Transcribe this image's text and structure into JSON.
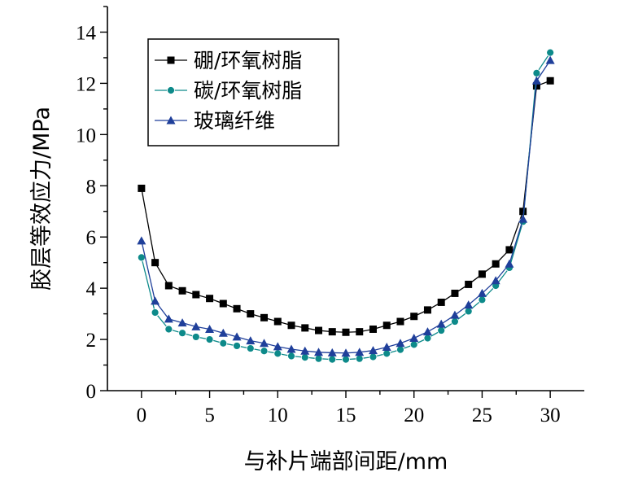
{
  "chart_data": {
    "type": "line",
    "xlabel": "与补片端部间距/mm",
    "ylabel": "胶层等效应力/MPa",
    "xlim": [
      -2.5,
      32.5
    ],
    "ylim": [
      0,
      15
    ],
    "xticks": [
      0,
      5,
      10,
      15,
      20,
      25,
      30
    ],
    "yticks": [
      0,
      2,
      4,
      6,
      8,
      10,
      12,
      14
    ],
    "legend_position": "top-left",
    "series": [
      {
        "name": "硼/环氧树脂",
        "marker": "square",
        "color": "#000000",
        "x": [
          0,
          1,
          2,
          3,
          4,
          5,
          6,
          7,
          8,
          9,
          10,
          11,
          12,
          13,
          14,
          15,
          16,
          17,
          18,
          19,
          20,
          21,
          22,
          23,
          24,
          25,
          26,
          27,
          28,
          29,
          30
        ],
        "values": [
          7.9,
          5.0,
          4.1,
          3.9,
          3.75,
          3.6,
          3.4,
          3.2,
          3.0,
          2.85,
          2.7,
          2.55,
          2.45,
          2.35,
          2.3,
          2.28,
          2.3,
          2.4,
          2.55,
          2.7,
          2.9,
          3.15,
          3.45,
          3.8,
          4.15,
          4.55,
          4.95,
          5.5,
          7.0,
          11.9,
          12.1
        ]
      },
      {
        "name": "碳/环氧树脂",
        "marker": "circle",
        "color": "#0d8a8a",
        "x": [
          0,
          1,
          2,
          3,
          4,
          5,
          6,
          7,
          8,
          9,
          10,
          11,
          12,
          13,
          14,
          15,
          16,
          17,
          18,
          19,
          20,
          21,
          22,
          23,
          24,
          25,
          26,
          27,
          28,
          29,
          30
        ],
        "values": [
          5.2,
          3.05,
          2.4,
          2.25,
          2.1,
          2.0,
          1.85,
          1.75,
          1.65,
          1.55,
          1.45,
          1.35,
          1.3,
          1.25,
          1.22,
          1.22,
          1.25,
          1.32,
          1.45,
          1.6,
          1.8,
          2.05,
          2.35,
          2.7,
          3.1,
          3.55,
          4.1,
          4.8,
          6.6,
          12.4,
          13.2
        ]
      },
      {
        "name": "玻璃纤维",
        "marker": "triangle",
        "color": "#1f3f9a",
        "x": [
          0,
          1,
          2,
          3,
          4,
          5,
          6,
          7,
          8,
          9,
          10,
          11,
          12,
          13,
          14,
          15,
          16,
          17,
          18,
          19,
          20,
          21,
          22,
          23,
          24,
          25,
          26,
          27,
          28,
          29,
          30
        ],
        "values": [
          5.85,
          3.5,
          2.8,
          2.65,
          2.5,
          2.4,
          2.25,
          2.1,
          1.95,
          1.85,
          1.72,
          1.62,
          1.55,
          1.5,
          1.48,
          1.47,
          1.5,
          1.57,
          1.7,
          1.85,
          2.05,
          2.3,
          2.6,
          2.95,
          3.35,
          3.8,
          4.3,
          4.95,
          6.7,
          12.1,
          12.9
        ]
      }
    ]
  }
}
